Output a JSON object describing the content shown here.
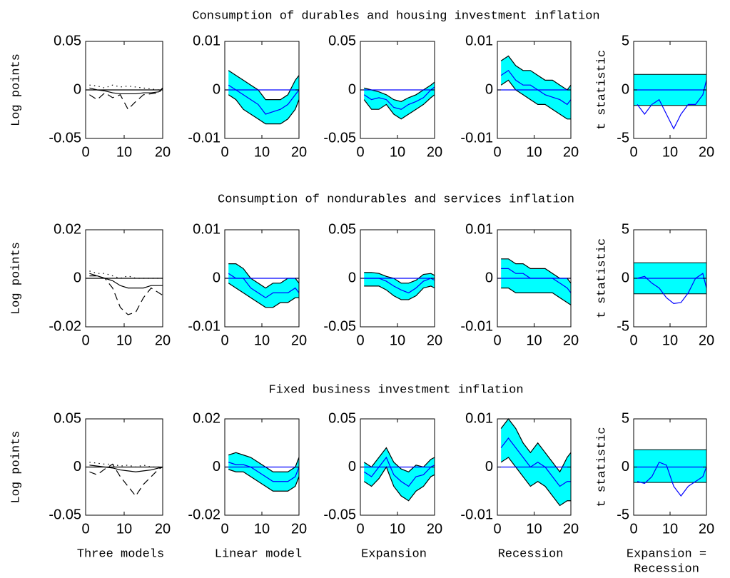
{
  "row_titles": [
    "Consumption of durables and housing investment inflation",
    "Consumption of nondurables and services inflation",
    "Fixed business investment inflation"
  ],
  "chart_data": [
    {
      "type": "line",
      "ylabel": "Log points",
      "x": [
        1,
        3,
        5,
        7,
        9,
        11,
        13,
        15,
        17,
        19,
        20
      ],
      "xlim": [
        0,
        20
      ],
      "xticks": [
        0,
        10,
        20
      ],
      "ylim": [
        -0.05,
        0.05
      ],
      "yticks": [
        -0.05,
        0,
        0.05
      ],
      "zero_line": "#000000",
      "series": [
        {
          "color": "#000000",
          "dash": "solid",
          "values": [
            0.002,
            0,
            -0.001,
            -0.003,
            -0.004,
            -0.004,
            -0.004,
            -0.003,
            -0.003,
            -0.002,
            0.002
          ]
        },
        {
          "color": "#000000",
          "dash": "dashed",
          "values": [
            -0.005,
            -0.01,
            -0.003,
            -0.008,
            -0.005,
            -0.02,
            -0.012,
            -0.005,
            -0.004,
            -0.003,
            0.002
          ]
        },
        {
          "color": "#000000",
          "dash": "dotted",
          "values": [
            0.005,
            0.004,
            0.002,
            0.005,
            0.003,
            0.004,
            0.003,
            0.002,
            0.001,
            0,
            0.002
          ]
        }
      ]
    },
    {
      "type": "band",
      "x": [
        1,
        3,
        5,
        7,
        9,
        11,
        13,
        15,
        17,
        19,
        20
      ],
      "xlim": [
        0,
        20
      ],
      "xticks": [
        0,
        10,
        20
      ],
      "ylim": [
        -0.01,
        0.01
      ],
      "yticks": [
        -0.01,
        0,
        0.01
      ],
      "zero_line": "#0000ff",
      "band": {
        "color": "#00ffff",
        "lower": [
          -0.001,
          -0.002,
          -0.004,
          -0.005,
          -0.006,
          -0.007,
          -0.007,
          -0.007,
          -0.006,
          -0.004,
          -0.002
        ],
        "upper": [
          0.004,
          0.003,
          0.002,
          0.001,
          0,
          -0.002,
          -0.002,
          -0.002,
          -0.001,
          0.002,
          0.003
        ]
      },
      "series": [
        {
          "color": "#0000ff",
          "values": [
            0.001,
            0,
            -0.001,
            -0.002,
            -0.003,
            -0.005,
            -0.0045,
            -0.004,
            -0.003,
            -0.001,
            0
          ]
        }
      ]
    },
    {
      "type": "band",
      "x": [
        1,
        3,
        5,
        7,
        9,
        11,
        13,
        15,
        17,
        19,
        20
      ],
      "xlim": [
        0,
        20
      ],
      "xticks": [
        0,
        10,
        20
      ],
      "ylim": [
        -0.05,
        0.05
      ],
      "yticks": [
        -0.05,
        0,
        0.05
      ],
      "zero_line": "#0000ff",
      "band": {
        "color": "#00ffff",
        "lower": [
          -0.01,
          -0.02,
          -0.02,
          -0.015,
          -0.025,
          -0.03,
          -0.025,
          -0.02,
          -0.015,
          -0.008,
          -0.005
        ],
        "upper": [
          0.002,
          0,
          -0.002,
          -0.005,
          -0.01,
          -0.012,
          -0.008,
          -0.005,
          0,
          0.005,
          0.008
        ]
      },
      "series": [
        {
          "color": "#0000ff",
          "values": [
            -0.005,
            -0.01,
            -0.008,
            -0.01,
            -0.018,
            -0.02,
            -0.015,
            -0.012,
            -0.008,
            0,
            0.003
          ]
        }
      ]
    },
    {
      "type": "band",
      "x": [
        1,
        3,
        5,
        7,
        9,
        11,
        13,
        15,
        17,
        19,
        20
      ],
      "xlim": [
        0,
        20
      ],
      "xticks": [
        0,
        10,
        20
      ],
      "ylim": [
        -0.01,
        0.01
      ],
      "yticks": [
        -0.01,
        0,
        0.01
      ],
      "zero_line": "#0000ff",
      "band": {
        "color": "#00ffff",
        "lower": [
          0.001,
          0.002,
          0,
          -0.001,
          -0.002,
          -0.003,
          -0.003,
          -0.004,
          -0.005,
          -0.006,
          -0.006
        ],
        "upper": [
          0.006,
          0.007,
          0.005,
          0.004,
          0.004,
          0.003,
          0.002,
          0.002,
          0.001,
          0,
          0.001
        ]
      },
      "series": [
        {
          "color": "#0000ff",
          "values": [
            0.003,
            0.004,
            0.002,
            0.001,
            0.001,
            0,
            -0.001,
            -0.0015,
            -0.002,
            -0.003,
            -0.002
          ]
        }
      ]
    },
    {
      "type": "line",
      "ylabel": "t statistic",
      "x": [
        1,
        3,
        5,
        7,
        9,
        11,
        13,
        15,
        17,
        19,
        20
      ],
      "xlim": [
        0,
        20
      ],
      "xticks": [
        0,
        10,
        20
      ],
      "ylim": [
        -5,
        5
      ],
      "yticks": [
        -5,
        0,
        5
      ],
      "zero_line": "#0000ff",
      "shaded_range": [
        -1.6,
        1.6
      ],
      "shaded_color": "#00ffff",
      "series": [
        {
          "color": "#0000ff",
          "dash": "solid",
          "values": [
            -1.5,
            -2.5,
            -1.5,
            -1,
            -2.5,
            -4,
            -2.5,
            -1.5,
            -1.5,
            -0.5,
            1
          ]
        }
      ]
    },
    {
      "type": "line",
      "ylabel": "Log points",
      "x": [
        1,
        3,
        5,
        7,
        9,
        11,
        13,
        15,
        17,
        19,
        20
      ],
      "xlim": [
        0,
        20
      ],
      "xticks": [
        0,
        10,
        20
      ],
      "ylim": [
        -0.02,
        0.02
      ],
      "yticks": [
        -0.02,
        0,
        0.02
      ],
      "zero_line": "#000000",
      "series": [
        {
          "color": "#000000",
          "dash": "solid",
          "values": [
            0.001,
            0.001,
            0,
            -0.001,
            -0.003,
            -0.004,
            -0.004,
            -0.004,
            -0.003,
            -0.003,
            -0.003
          ]
        },
        {
          "color": "#000000",
          "dash": "dashed",
          "values": [
            0.002,
            0.001,
            0,
            -0.004,
            -0.012,
            -0.015,
            -0.014,
            -0.008,
            -0.004,
            -0.006,
            -0.007
          ]
        },
        {
          "color": "#000000",
          "dash": "dotted",
          "values": [
            0.003,
            0.002,
            0.002,
            0.001,
            0,
            0.001,
            0,
            0,
            0,
            0,
            0
          ]
        }
      ]
    },
    {
      "type": "band",
      "x": [
        1,
        3,
        5,
        7,
        9,
        11,
        13,
        15,
        17,
        19,
        20
      ],
      "xlim": [
        0,
        20
      ],
      "xticks": [
        0,
        10,
        20
      ],
      "ylim": [
        -0.01,
        0.01
      ],
      "yticks": [
        -0.01,
        0,
        0.01
      ],
      "zero_line": "#0000ff",
      "band": {
        "color": "#00ffff",
        "lower": [
          -0.001,
          -0.002,
          -0.003,
          -0.004,
          -0.005,
          -0.006,
          -0.006,
          -0.005,
          -0.005,
          -0.004,
          -0.004
        ],
        "upper": [
          0.003,
          0.003,
          0.002,
          0,
          -0.001,
          -0.002,
          -0.001,
          -0.001,
          0,
          0,
          -0.001
        ]
      },
      "series": [
        {
          "color": "#0000ff",
          "values": [
            0.001,
            0,
            0,
            -0.002,
            -0.003,
            -0.004,
            -0.003,
            -0.003,
            -0.003,
            -0.002,
            -0.003
          ]
        }
      ]
    },
    {
      "type": "band",
      "x": [
        1,
        3,
        5,
        7,
        9,
        11,
        13,
        15,
        17,
        19,
        20
      ],
      "xlim": [
        0,
        20
      ],
      "xticks": [
        0,
        10,
        20
      ],
      "ylim": [
        -0.05,
        0.05
      ],
      "yticks": [
        -0.05,
        0,
        0.05
      ],
      "zero_line": "#0000ff",
      "band": {
        "color": "#00ffff",
        "lower": [
          -0.008,
          -0.008,
          -0.008,
          -0.012,
          -0.018,
          -0.022,
          -0.022,
          -0.018,
          -0.01,
          -0.008,
          -0.01
        ],
        "upper": [
          0.006,
          0.006,
          0.005,
          0.002,
          0,
          -0.005,
          -0.005,
          -0.002,
          0.004,
          0.005,
          0.003
        ]
      },
      "series": [
        {
          "color": "#0000ff",
          "values": [
            0,
            0,
            0,
            -0.003,
            -0.008,
            -0.012,
            -0.015,
            -0.01,
            -0.003,
            0,
            -0.002
          ]
        }
      ]
    },
    {
      "type": "band",
      "x": [
        1,
        3,
        5,
        7,
        9,
        11,
        13,
        15,
        17,
        19,
        20
      ],
      "xlim": [
        0,
        20
      ],
      "xticks": [
        0,
        10,
        20
      ],
      "ylim": [
        -0.01,
        0.01
      ],
      "yticks": [
        -0.01,
        0,
        0.01
      ],
      "zero_line": "#0000ff",
      "band": {
        "color": "#00ffff",
        "lower": [
          -0.002,
          -0.002,
          -0.003,
          -0.003,
          -0.003,
          -0.003,
          -0.003,
          -0.003,
          -0.004,
          -0.005,
          -0.0055
        ],
        "upper": [
          0.004,
          0.004,
          0.003,
          0.003,
          0.002,
          0.002,
          0.002,
          0.001,
          0,
          0,
          -0.001
        ]
      },
      "series": [
        {
          "color": "#0000ff",
          "values": [
            0.002,
            0.002,
            0.001,
            0.001,
            0,
            0,
            0,
            0,
            -0.001,
            -0.002,
            -0.003
          ]
        }
      ]
    },
    {
      "type": "line",
      "ylabel": "t statistic",
      "x": [
        1,
        3,
        5,
        7,
        9,
        11,
        13,
        15,
        17,
        19,
        20
      ],
      "xlim": [
        0,
        20
      ],
      "xticks": [
        0,
        10,
        20
      ],
      "ylim": [
        -5,
        5
      ],
      "yticks": [
        -5,
        0,
        5
      ],
      "zero_line": "#0000ff",
      "shaded_range": [
        -1.6,
        1.6
      ],
      "shaded_color": "#00ffff",
      "series": [
        {
          "color": "#0000ff",
          "dash": "solid",
          "values": [
            0,
            0.2,
            -0.5,
            -1,
            -2,
            -2.6,
            -2.5,
            -1.5,
            0,
            0.5,
            -1
          ]
        }
      ]
    },
    {
      "type": "line",
      "ylabel": "Log points",
      "xlabel": [
        "Three models"
      ],
      "x": [
        1,
        3,
        5,
        7,
        9,
        11,
        13,
        15,
        17,
        19,
        20
      ],
      "xlim": [
        0,
        20
      ],
      "xticks": [
        0,
        10,
        20
      ],
      "ylim": [
        -0.05,
        0.05
      ],
      "yticks": [
        -0.05,
        0,
        0.05
      ],
      "zero_line": "#000000",
      "series": [
        {
          "color": "#000000",
          "dash": "solid",
          "values": [
            0.002,
            0.001,
            0,
            -0.001,
            -0.003,
            -0.004,
            -0.005,
            -0.004,
            -0.003,
            -0.001,
            0
          ]
        },
        {
          "color": "#000000",
          "dash": "dashed",
          "values": [
            -0.005,
            -0.008,
            -0.002,
            0.003,
            -0.01,
            -0.02,
            -0.03,
            -0.018,
            -0.01,
            -0.002,
            0
          ]
        },
        {
          "color": "#000000",
          "dash": "dotted",
          "values": [
            0.005,
            0.004,
            0.003,
            0.003,
            0.001,
            0.002,
            0,
            0.002,
            0,
            0,
            0
          ]
        }
      ]
    },
    {
      "type": "band",
      "xlabel": [
        "Linear model"
      ],
      "x": [
        1,
        3,
        5,
        7,
        9,
        11,
        13,
        15,
        17,
        19,
        20
      ],
      "xlim": [
        0,
        20
      ],
      "xticks": [
        0,
        10,
        20
      ],
      "ylim": [
        -0.02,
        0.02
      ],
      "yticks": [
        -0.02,
        0,
        0.02
      ],
      "zero_line": "#0000ff",
      "band": {
        "color": "#00ffff",
        "lower": [
          -0.001,
          -0.002,
          -0.002,
          -0.004,
          -0.006,
          -0.008,
          -0.01,
          -0.01,
          -0.01,
          -0.008,
          -0.004
        ],
        "upper": [
          0.005,
          0.006,
          0.005,
          0.004,
          0.002,
          0,
          -0.002,
          -0.002,
          -0.002,
          0,
          0.004
        ]
      },
      "series": [
        {
          "color": "#0000ff",
          "values": [
            0.002,
            0.001,
            0.001,
            0,
            -0.002,
            -0.004,
            -0.006,
            -0.006,
            -0.006,
            -0.004,
            0
          ]
        }
      ]
    },
    {
      "type": "band",
      "xlabel": [
        "Expansion"
      ],
      "x": [
        1,
        3,
        5,
        7,
        9,
        11,
        13,
        15,
        17,
        19,
        20
      ],
      "xlim": [
        0,
        20
      ],
      "xticks": [
        0,
        10,
        20
      ],
      "ylim": [
        -0.05,
        0.05
      ],
      "yticks": [
        -0.05,
        0,
        0.05
      ],
      "zero_line": "#0000ff",
      "band": {
        "color": "#00ffff",
        "lower": [
          -0.015,
          -0.02,
          -0.012,
          0,
          -0.02,
          -0.03,
          -0.035,
          -0.025,
          -0.02,
          -0.01,
          -0.008
        ],
        "upper": [
          0.005,
          0,
          0.01,
          0.02,
          0.005,
          -0.002,
          -0.005,
          0.002,
          0,
          0.008,
          0.01
        ]
      },
      "series": [
        {
          "color": "#0000ff",
          "values": [
            -0.005,
            -0.01,
            0,
            0.01,
            -0.008,
            -0.015,
            -0.02,
            -0.01,
            -0.008,
            0,
            0.002
          ]
        }
      ]
    },
    {
      "type": "band",
      "xlabel": [
        "Recession"
      ],
      "x": [
        1,
        3,
        5,
        7,
        9,
        11,
        13,
        15,
        17,
        19,
        20
      ],
      "xlim": [
        0,
        20
      ],
      "xticks": [
        0,
        10,
        20
      ],
      "ylim": [
        -0.01,
        0.01
      ],
      "yticks": [
        -0.01,
        0,
        0.01
      ],
      "zero_line": "#0000ff",
      "band": {
        "color": "#00ffff",
        "lower": [
          0.001,
          0.002,
          0,
          -0.002,
          -0.004,
          -0.003,
          -0.004,
          -0.006,
          -0.008,
          -0.007,
          -0.007
        ],
        "upper": [
          0.008,
          0.01,
          0.008,
          0.005,
          0.003,
          0.005,
          0.003,
          0.001,
          -0.001,
          0.002,
          0.003
        ]
      },
      "series": [
        {
          "color": "#0000ff",
          "values": [
            0.004,
            0.006,
            0.004,
            0.002,
            0,
            0.001,
            0,
            -0.002,
            -0.004,
            -0.003,
            -0.003
          ]
        }
      ]
    },
    {
      "type": "line",
      "ylabel": "t statistic",
      "xlabel": [
        "Expansion =",
        "Recession"
      ],
      "x": [
        1,
        3,
        5,
        7,
        9,
        11,
        13,
        15,
        17,
        19,
        20
      ],
      "xlim": [
        0,
        20
      ],
      "xticks": [
        0,
        10,
        20
      ],
      "ylim": [
        -5,
        5
      ],
      "yticks": [
        -5,
        0,
        5
      ],
      "zero_line": "#0000ff",
      "shaded_range": [
        -1.6,
        1.8
      ],
      "shaded_color": "#00ffff",
      "series": [
        {
          "color": "#0000ff",
          "dash": "solid",
          "values": [
            -1.5,
            -1.7,
            -1,
            0.5,
            0.2,
            -2,
            -3,
            -2,
            -1.5,
            -1,
            0
          ]
        }
      ]
    }
  ]
}
